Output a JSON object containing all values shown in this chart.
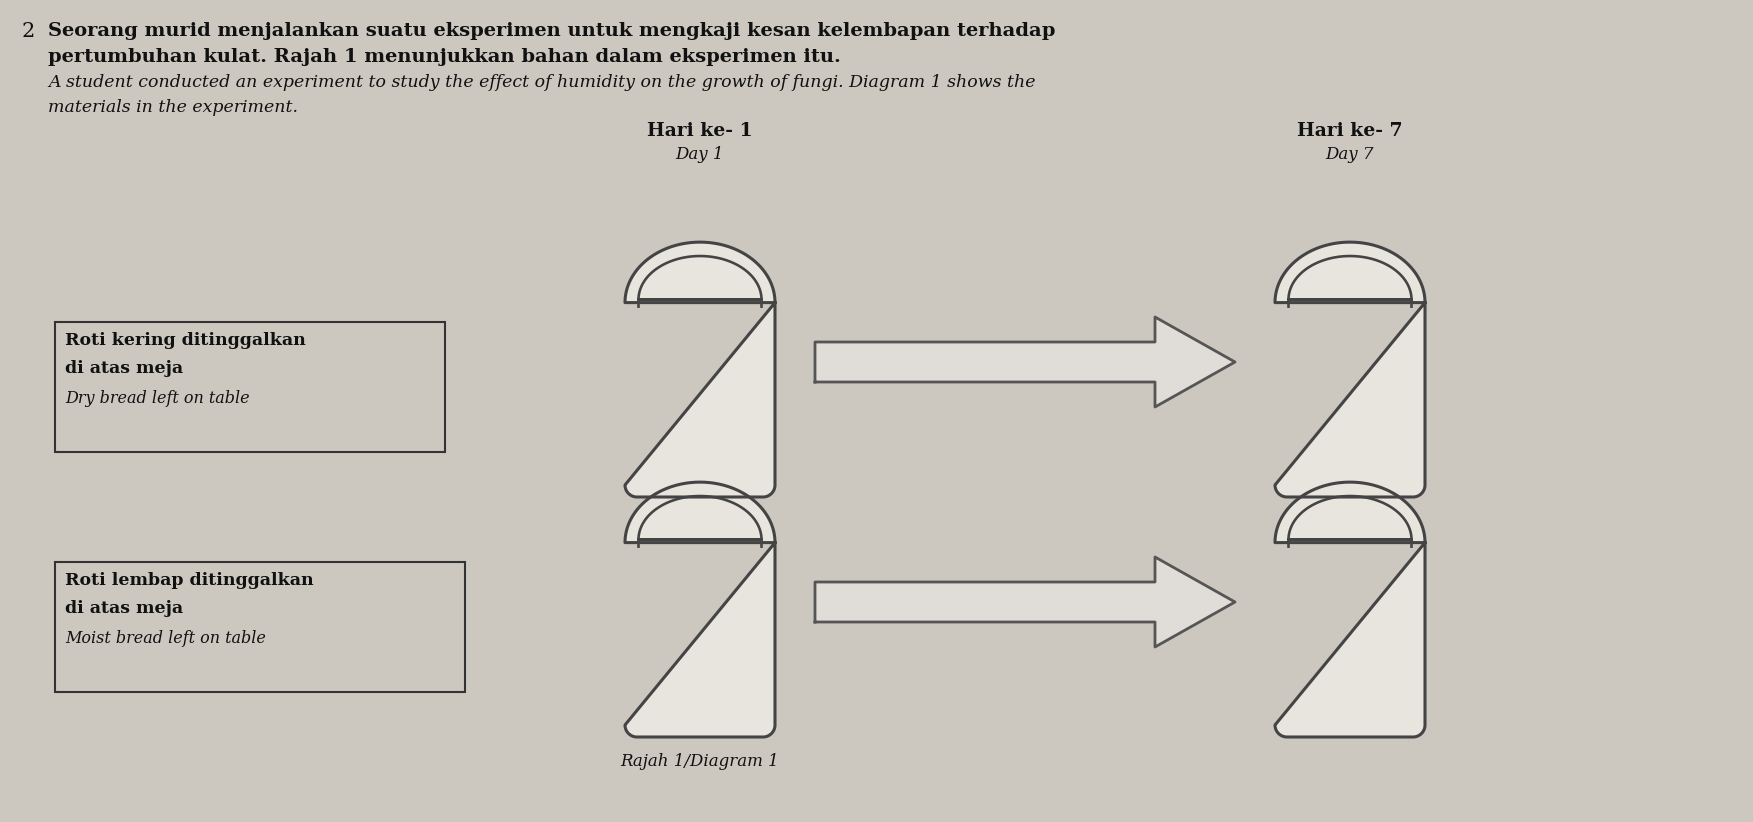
{
  "background_color": "#ccc8c0",
  "text_color": "#111111",
  "text_malay_line1": "Seorang murid menjalankan suatu eksperimen untuk mengkaji kesan kelembapan terhadap",
  "text_malay_line2": "pertumbuhan kulat. Rajah 1 menunjukkan bahan dalam eksperimen itu.",
  "text_english_line1": "A student conducted an experiment to study the effect of humidity on the growth of fungi. Diagram 1 shows the",
  "text_english_line2": "materials in the experiment.",
  "col1_header_malay": "Hari ke- 1",
  "col1_header_english": "Day 1",
  "col2_header_malay": "Hari ke- 7",
  "col2_header_english": "Day 7",
  "box1_line1": "Roti kering ditinggalkan",
  "box1_line2": "di atas meja",
  "box1_line3": "Dry bread left on table",
  "box2_line1": "Roti lembap ditinggalkan",
  "box2_line2": "di atas meja",
  "box2_line3": "Moist bread left on table",
  "caption": "Rajah 1/Diagram 1",
  "bread_fill": "#e8e4de",
  "bread_edge": "#444444",
  "arrow_fill": "#e0ddd8",
  "arrow_edge": "#555555",
  "box_edge": "#333333",
  "box_fill": "#ccc8c0"
}
